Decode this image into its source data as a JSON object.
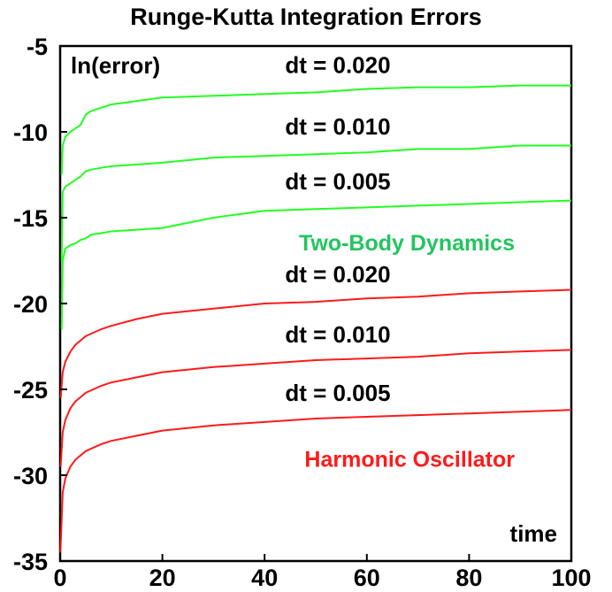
{
  "chart_data": {
    "type": "line",
    "title": "Runge-Kutta Integration Errors",
    "ylabel": "ln(error)",
    "xlabel": "time",
    "xlim": [
      0,
      100
    ],
    "ylim": [
      -35,
      -5
    ],
    "x_ticks": [
      0,
      20,
      40,
      60,
      80,
      100
    ],
    "y_ticks": [
      -35,
      -30,
      -25,
      -20,
      -15,
      -10,
      -5
    ],
    "x_tick_labels": [
      "0",
      "20",
      "40",
      "60",
      "80",
      "100"
    ],
    "y_tick_labels": [
      "-35",
      "-30",
      "-25",
      "-20",
      "-15",
      "-10",
      "-5"
    ],
    "groups": [
      {
        "label": "Two-Body Dynamics",
        "color": "#22ff22",
        "label_color": "#22c55e"
      },
      {
        "label": "Harmonic Oscillator",
        "color": "#ff1a1a",
        "label_color": "#ff1a1a"
      }
    ],
    "series": [
      {
        "group": "Two-Body Dynamics",
        "label": "dt = 0.020",
        "color": "#22ff22",
        "x": [
          0.3,
          0.5,
          1,
          2,
          3,
          4,
          5,
          6,
          8,
          10,
          15,
          20,
          30,
          40,
          50,
          60,
          70,
          80,
          90,
          100
        ],
        "y": [
          -12.5,
          -10.8,
          -10.3,
          -10.0,
          -9.8,
          -9.6,
          -9.0,
          -8.8,
          -8.6,
          -8.4,
          -8.2,
          -8.0,
          -7.9,
          -7.8,
          -7.7,
          -7.5,
          -7.4,
          -7.4,
          -7.3,
          -7.3
        ]
      },
      {
        "group": "Two-Body Dynamics",
        "label": "dt = 0.010",
        "color": "#22ff22",
        "x": [
          0.3,
          0.5,
          1,
          2,
          3,
          4,
          5,
          6,
          8,
          10,
          15,
          20,
          30,
          40,
          50,
          60,
          70,
          80,
          90,
          100
        ],
        "y": [
          -17.5,
          -13.5,
          -13.2,
          -13.0,
          -12.8,
          -12.6,
          -12.3,
          -12.2,
          -12.1,
          -12.0,
          -11.9,
          -11.8,
          -11.5,
          -11.4,
          -11.3,
          -11.2,
          -11.0,
          -11.0,
          -10.8,
          -10.8
        ]
      },
      {
        "group": "Two-Body Dynamics",
        "label": "dt = 0.005",
        "color": "#22ff22",
        "x": [
          0.3,
          0.5,
          1,
          2,
          3,
          4,
          5,
          6,
          8,
          10,
          15,
          20,
          30,
          40,
          50,
          60,
          70,
          80,
          90,
          100
        ],
        "y": [
          -21.5,
          -17.5,
          -16.8,
          -16.6,
          -16.5,
          -16.3,
          -16.2,
          -16.0,
          -15.9,
          -15.8,
          -15.7,
          -15.6,
          -15.0,
          -14.6,
          -14.5,
          -14.4,
          -14.3,
          -14.2,
          -14.1,
          -14.0
        ]
      },
      {
        "group": "Harmonic Oscillator",
        "label": "dt = 0.020",
        "color": "#ff1a1a",
        "x": [
          0.1,
          0.5,
          1,
          2,
          3,
          5,
          8,
          10,
          15,
          20,
          30,
          40,
          50,
          60,
          70,
          80,
          90,
          100
        ],
        "y": [
          -25.5,
          -24.0,
          -23.4,
          -22.8,
          -22.4,
          -21.9,
          -21.5,
          -21.3,
          -20.9,
          -20.6,
          -20.3,
          -20.0,
          -19.9,
          -19.7,
          -19.6,
          -19.4,
          -19.3,
          -19.2
        ]
      },
      {
        "group": "Harmonic Oscillator",
        "label": "dt = 0.010",
        "color": "#ff1a1a",
        "x": [
          0.1,
          0.5,
          1,
          2,
          3,
          5,
          8,
          10,
          15,
          20,
          30,
          40,
          50,
          60,
          70,
          80,
          90,
          100
        ],
        "y": [
          -29.5,
          -27.5,
          -26.8,
          -26.1,
          -25.7,
          -25.2,
          -24.8,
          -24.6,
          -24.3,
          -24.0,
          -23.7,
          -23.5,
          -23.3,
          -23.2,
          -23.1,
          -22.9,
          -22.8,
          -22.7
        ]
      },
      {
        "group": "Harmonic Oscillator",
        "label": "dt = 0.005",
        "color": "#ff1a1a",
        "x": [
          0.05,
          0.5,
          1,
          2,
          3,
          5,
          8,
          10,
          15,
          20,
          30,
          40,
          50,
          60,
          70,
          80,
          90,
          100
        ],
        "y": [
          -34.5,
          -31.0,
          -30.2,
          -29.5,
          -29.1,
          -28.6,
          -28.2,
          -28.0,
          -27.7,
          -27.4,
          -27.1,
          -26.9,
          -26.7,
          -26.6,
          -26.5,
          -26.4,
          -26.3,
          -26.2
        ]
      }
    ],
    "grid": false,
    "legend": "none"
  }
}
